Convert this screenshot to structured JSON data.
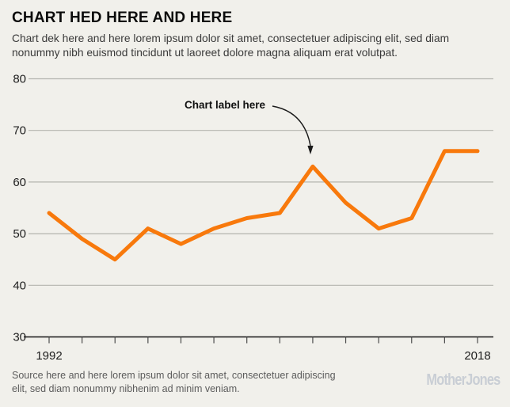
{
  "header": {
    "title": "CHART HED HERE AND HERE",
    "dek": "Chart dek here and here lorem ipsum dolor sit amet, consectetuer adipiscing elit, sed diam nonummy nibh euismod tincidunt ut laoreet dolore magna aliquam erat volutpat."
  },
  "chart_data": {
    "type": "line",
    "x": [
      1992,
      1994,
      1996,
      1998,
      2000,
      2002,
      2004,
      2006,
      2008,
      2010,
      2012,
      2014,
      2016,
      2018
    ],
    "values": [
      54,
      49,
      45,
      51,
      48,
      51,
      53,
      54,
      63,
      56,
      51,
      53,
      66,
      66
    ],
    "ylim": [
      30,
      80
    ],
    "yticks": [
      30,
      40,
      50,
      60,
      70,
      80
    ],
    "x_axis_labels": [
      "1992",
      "2018"
    ],
    "grid": "horizontal",
    "legend": "none",
    "annotation": {
      "text": "Chart label here",
      "points_to_x": 2008,
      "points_to_y": 63
    },
    "colors": {
      "line": "#f8790c",
      "gridline": "#b4b4ae",
      "baseline": "#141414",
      "background": "#f1f0eb"
    }
  },
  "footer": {
    "source": "Source here and here lorem ipsum dolor sit amet, consectetuer adipiscing elit, sed diam nonummy nibhenim ad minim veniam.",
    "logo": "MotherJones"
  }
}
